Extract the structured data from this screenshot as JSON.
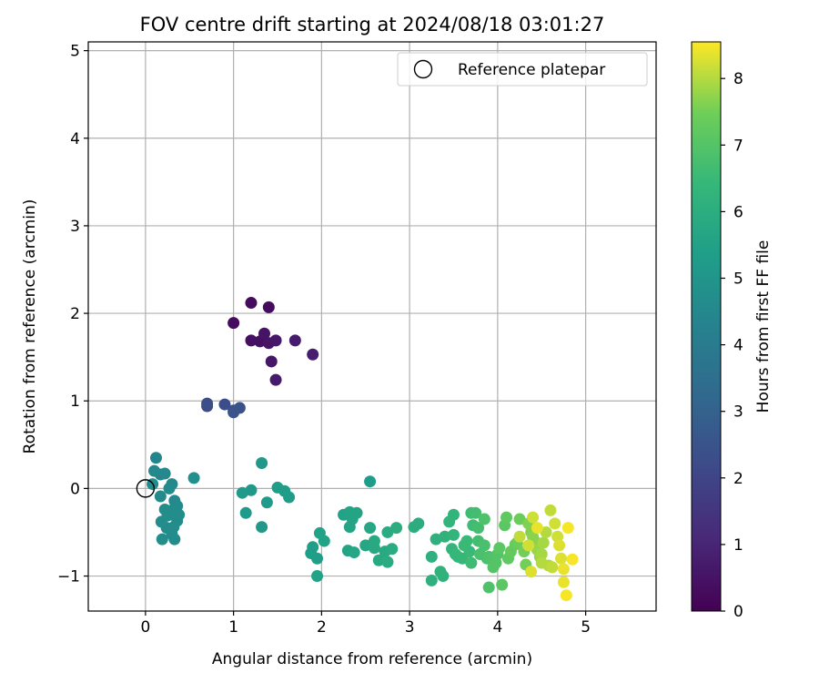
{
  "chart_data": {
    "type": "scatter",
    "title": "FOV centre drift starting at 2024/08/18 03:01:27",
    "xlabel": "Angular distance from reference (arcmin)",
    "ylabel": "Rotation from reference (arcmin)",
    "xlim": [
      -0.65,
      5.8
    ],
    "ylim": [
      -1.4,
      5.1
    ],
    "xticks": [
      0,
      1,
      2,
      3,
      4,
      5
    ],
    "yticks": [
      -1,
      0,
      1,
      2,
      3,
      4,
      5
    ],
    "grid": true,
    "legend": {
      "placement": "top-right",
      "entries": [
        "Reference platepar"
      ]
    },
    "reference": {
      "x": 0,
      "y": 0,
      "label": "Reference platepar"
    },
    "colorbar": {
      "label": "Hours from first FF file",
      "colormap": "viridis",
      "range": [
        0,
        8.55
      ],
      "ticks": [
        0,
        1,
        2,
        3,
        4,
        5,
        6,
        7,
        8
      ]
    },
    "points": [
      [
        1.0,
        1.89,
        0.3
      ],
      [
        1.2,
        2.12,
        0.3
      ],
      [
        1.4,
        2.07,
        0.3
      ],
      [
        1.2,
        1.69,
        0.4
      ],
      [
        1.3,
        1.68,
        0.4
      ],
      [
        1.35,
        1.77,
        0.5
      ],
      [
        1.4,
        1.66,
        0.5
      ],
      [
        1.48,
        1.69,
        0.6
      ],
      [
        1.43,
        1.45,
        0.6
      ],
      [
        1.48,
        1.24,
        0.7
      ],
      [
        1.7,
        1.69,
        0.7
      ],
      [
        1.9,
        1.53,
        0.8
      ],
      [
        0.7,
        0.94,
        2.2
      ],
      [
        0.7,
        0.97,
        2.3
      ],
      [
        0.9,
        0.96,
        2.3
      ],
      [
        1.0,
        0.89,
        2.4
      ],
      [
        1.07,
        0.92,
        2.4
      ],
      [
        1.0,
        0.87,
        2.5
      ],
      [
        0.12,
        0.35,
        4.4
      ],
      [
        0.1,
        0.2,
        4.5
      ],
      [
        0.17,
        0.16,
        4.4
      ],
      [
        0.22,
        0.17,
        4.5
      ],
      [
        0.08,
        0.05,
        4.6
      ],
      [
        0.3,
        0.05,
        4.5
      ],
      [
        0.27,
        0.0,
        4.6
      ],
      [
        0.17,
        -0.09,
        4.6
      ],
      [
        0.33,
        -0.14,
        4.5
      ],
      [
        0.36,
        -0.2,
        4.6
      ],
      [
        0.22,
        -0.24,
        4.7
      ],
      [
        0.3,
        -0.25,
        4.6
      ],
      [
        0.38,
        -0.3,
        4.7
      ],
      [
        0.25,
        -0.31,
        4.7
      ],
      [
        0.18,
        -0.38,
        4.7
      ],
      [
        0.36,
        -0.37,
        4.6
      ],
      [
        0.32,
        -0.44,
        4.7
      ],
      [
        0.24,
        -0.45,
        4.6
      ],
      [
        0.3,
        -0.52,
        4.7
      ],
      [
        0.19,
        -0.58,
        4.7
      ],
      [
        0.33,
        -0.58,
        4.6
      ],
      [
        0.55,
        0.12,
        4.8
      ],
      [
        1.32,
        0.29,
        5.1
      ],
      [
        1.2,
        -0.02,
        5.1
      ],
      [
        1.1,
        -0.05,
        5.2
      ],
      [
        1.14,
        -0.28,
        5.2
      ],
      [
        1.32,
        -0.44,
        5.1
      ],
      [
        1.38,
        -0.16,
        5.2
      ],
      [
        1.5,
        0.01,
        5.3
      ],
      [
        1.58,
        -0.03,
        5.3
      ],
      [
        1.63,
        -0.1,
        5.3
      ],
      [
        2.55,
        0.08,
        5.3
      ],
      [
        1.9,
        -0.67,
        5.4
      ],
      [
        1.88,
        -0.74,
        5.4
      ],
      [
        1.95,
        -0.8,
        5.4
      ],
      [
        1.95,
        -1.0,
        5.5
      ],
      [
        1.98,
        -0.51,
        5.5
      ],
      [
        2.03,
        -0.6,
        5.5
      ],
      [
        2.25,
        -0.3,
        5.5
      ],
      [
        2.32,
        -0.27,
        5.6
      ],
      [
        2.35,
        -0.35,
        5.6
      ],
      [
        2.4,
        -0.28,
        5.6
      ],
      [
        2.32,
        -0.44,
        5.6
      ],
      [
        2.3,
        -0.71,
        5.6
      ],
      [
        2.37,
        -0.73,
        5.7
      ],
      [
        2.5,
        -0.65,
        5.7
      ],
      [
        2.55,
        -0.45,
        5.7
      ],
      [
        2.6,
        -0.6,
        5.8
      ],
      [
        2.6,
        -0.68,
        5.8
      ],
      [
        2.65,
        -0.82,
        5.8
      ],
      [
        2.72,
        -0.72,
        5.8
      ],
      [
        2.75,
        -0.5,
        5.9
      ],
      [
        2.8,
        -0.69,
        5.9
      ],
      [
        2.75,
        -0.84,
        5.9
      ],
      [
        2.85,
        -0.45,
        6.0
      ],
      [
        3.05,
        -0.44,
        6.0
      ],
      [
        3.1,
        -0.4,
        6.0
      ],
      [
        3.25,
        -0.78,
        6.1
      ],
      [
        3.25,
        -1.05,
        6.1
      ],
      [
        3.3,
        -0.58,
        6.1
      ],
      [
        3.35,
        -0.95,
        6.2
      ],
      [
        3.38,
        -1.0,
        6.2
      ],
      [
        3.4,
        -0.55,
        6.2
      ],
      [
        3.45,
        -0.38,
        6.3
      ],
      [
        3.5,
        -0.3,
        6.3
      ],
      [
        3.5,
        -0.53,
        6.3
      ],
      [
        3.48,
        -0.69,
        6.3
      ],
      [
        3.55,
        -0.78,
        6.4
      ],
      [
        3.52,
        -0.75,
        6.4
      ],
      [
        3.6,
        -0.8,
        6.4
      ],
      [
        3.62,
        -0.65,
        6.5
      ],
      [
        3.65,
        -0.6,
        6.5
      ],
      [
        3.68,
        -0.72,
        6.5
      ],
      [
        3.7,
        -0.85,
        6.6
      ],
      [
        3.72,
        -0.42,
        6.6
      ],
      [
        3.7,
        -0.28,
        6.6
      ],
      [
        3.75,
        -0.28,
        6.7
      ],
      [
        3.78,
        -0.45,
        6.7
      ],
      [
        3.78,
        -0.6,
        6.7
      ],
      [
        3.8,
        -0.75,
        6.8
      ],
      [
        3.85,
        -0.65,
        6.8
      ],
      [
        3.88,
        -0.8,
        6.8
      ],
      [
        3.9,
        -0.78,
        6.9
      ],
      [
        3.85,
        -0.35,
        6.9
      ],
      [
        3.9,
        -1.13,
        6.9
      ],
      [
        3.95,
        -0.9,
        7.0
      ],
      [
        3.98,
        -0.85,
        7.0
      ],
      [
        4.0,
        -0.75,
        7.0
      ],
      [
        4.02,
        -0.68,
        7.1
      ],
      [
        4.05,
        -1.1,
        7.1
      ],
      [
        4.08,
        -0.42,
        7.1
      ],
      [
        4.1,
        -0.33,
        7.2
      ],
      [
        4.12,
        -0.8,
        7.2
      ],
      [
        4.15,
        -0.72,
        7.3
      ],
      [
        4.2,
        -0.64,
        7.3
      ],
      [
        4.22,
        -0.62,
        7.4
      ],
      [
        4.25,
        -0.35,
        7.4
      ],
      [
        4.3,
        -0.72,
        7.5
      ],
      [
        4.32,
        -0.87,
        7.5
      ],
      [
        4.35,
        -0.4,
        7.6
      ],
      [
        4.38,
        -0.5,
        7.6
      ],
      [
        4.4,
        -0.55,
        7.7
      ],
      [
        4.42,
        -0.6,
        7.7
      ],
      [
        4.45,
        -0.7,
        7.8
      ],
      [
        4.48,
        -0.78,
        7.8
      ],
      [
        4.5,
        -0.75,
        7.9
      ],
      [
        4.52,
        -0.62,
        7.9
      ],
      [
        4.55,
        -0.5,
        8.0
      ],
      [
        4.58,
        -0.88,
        8.0
      ],
      [
        4.6,
        -0.25,
        8.1
      ],
      [
        4.62,
        -0.9,
        8.1
      ],
      [
        4.65,
        -0.4,
        8.2
      ],
      [
        4.68,
        -0.55,
        8.2
      ],
      [
        4.7,
        -0.65,
        8.3
      ],
      [
        4.72,
        -0.8,
        8.3
      ],
      [
        4.75,
        -0.92,
        8.4
      ],
      [
        4.75,
        -1.07,
        8.4
      ],
      [
        4.78,
        -1.22,
        8.5
      ],
      [
        4.8,
        -0.45,
        8.5
      ],
      [
        4.85,
        -0.81,
        8.5
      ],
      [
        4.38,
        -0.95,
        8.3
      ],
      [
        4.4,
        -0.33,
        8.2
      ],
      [
        4.45,
        -0.45,
        8.4
      ],
      [
        4.25,
        -0.55,
        8.1
      ],
      [
        4.35,
        -0.65,
        8.2
      ],
      [
        4.5,
        -0.85,
        8.0
      ]
    ]
  }
}
